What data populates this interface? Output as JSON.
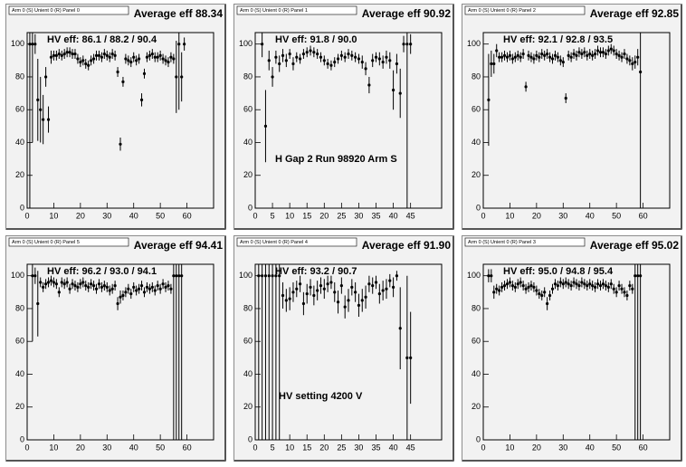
{
  "chart_data": [
    {
      "type": "scatter",
      "title": "Arm 0 (S) Unient 0 (R) Panel 0",
      "subtitle": "Average eff 88.34",
      "annotation": "HV eff:   86.1 / 88.2 / 90.4",
      "x": [
        1,
        2,
        3,
        4,
        5,
        6,
        7,
        8,
        9,
        10,
        11,
        12,
        13,
        14,
        15,
        16,
        17,
        18,
        19,
        20,
        21,
        22,
        23,
        24,
        25,
        26,
        27,
        28,
        29,
        30,
        31,
        32,
        33,
        34,
        35,
        36,
        37,
        38,
        39,
        40,
        41,
        42,
        43,
        44,
        45,
        46,
        47,
        48,
        49,
        50,
        51,
        52,
        53,
        54,
        55,
        56,
        57,
        58,
        59,
        60
      ],
      "values": [
        100,
        100,
        100,
        66,
        60,
        54,
        80,
        54,
        92,
        93,
        93,
        94,
        93,
        94,
        95,
        95,
        94,
        94,
        91,
        89,
        90,
        88,
        87,
        90,
        91,
        93,
        93,
        92,
        94,
        93,
        92,
        94,
        93,
        83,
        39,
        77,
        91,
        90,
        89,
        92,
        90,
        91,
        66,
        82,
        92,
        93,
        94,
        92,
        92,
        93,
        91,
        90,
        89,
        92,
        91,
        80,
        100,
        80,
        100,
        null
      ],
      "errors": [
        100,
        60,
        6,
        25,
        20,
        15,
        6,
        8,
        4,
        3,
        3,
        3,
        3,
        3,
        3,
        3,
        3,
        3,
        3,
        3,
        3,
        3,
        3,
        3,
        3,
        3,
        3,
        3,
        3,
        3,
        3,
        3,
        3,
        3,
        4,
        3,
        3,
        3,
        3,
        3,
        3,
        3,
        4,
        3,
        3,
        3,
        3,
        3,
        3,
        3,
        3,
        3,
        3,
        3,
        3,
        22,
        40,
        15,
        4,
        null
      ],
      "color": "#000000",
      "xlim": [
        0,
        70
      ],
      "ylim": [
        0,
        107
      ],
      "xticks": [
        0,
        10,
        20,
        30,
        40,
        50,
        60
      ],
      "yticks": [
        0,
        20,
        40,
        60,
        80,
        100
      ]
    },
    {
      "type": "scatter",
      "title": "Arm 0 (S) Unient 0 (R) Panel 1",
      "subtitle": "Average eff 90.92",
      "annotation": "HV eff:   91.8 / 90.0",
      "note": "H Gap 2 Run 98920 Arm S",
      "x": [
        1,
        2,
        3,
        4,
        5,
        6,
        7,
        8,
        9,
        10,
        11,
        12,
        13,
        14,
        15,
        16,
        17,
        18,
        19,
        20,
        21,
        22,
        23,
        24,
        25,
        26,
        27,
        28,
        29,
        30,
        31,
        32,
        33,
        34,
        35,
        36,
        37,
        38,
        39,
        40,
        41,
        42,
        43,
        44,
        45
      ],
      "values": [
        null,
        100,
        50,
        90,
        80,
        92,
        88,
        93,
        90,
        94,
        88,
        92,
        91,
        94,
        95,
        96,
        95,
        94,
        92,
        90,
        88,
        87,
        89,
        91,
        93,
        92,
        94,
        93,
        92,
        91,
        89,
        85,
        75,
        90,
        92,
        91,
        89,
        92,
        90,
        72,
        88,
        70,
        100,
        100,
        100
      ],
      "errors": [
        null,
        8,
        22,
        6,
        6,
        4,
        5,
        4,
        4,
        3,
        4,
        3,
        3,
        3,
        3,
        3,
        3,
        3,
        3,
        3,
        3,
        3,
        3,
        3,
        3,
        3,
        3,
        3,
        3,
        3,
        4,
        4,
        5,
        4,
        3,
        4,
        4,
        4,
        5,
        12,
        6,
        15,
        5,
        100,
        6
      ],
      "color": "#000000",
      "xlim": [
        0,
        54
      ],
      "ylim": [
        0,
        107
      ],
      "xticks": [
        0,
        5,
        10,
        15,
        20,
        25,
        30,
        35,
        40,
        45
      ],
      "yticks": [
        0,
        20,
        40,
        60,
        80,
        100
      ]
    },
    {
      "type": "scatter",
      "title": "Arm 0 (S) Unient 0 (R) Panel 2",
      "subtitle": "Average eff 92.85",
      "annotation": "HV eff:   92.1 / 92.8 / 93.5",
      "x": [
        1,
        2,
        3,
        4,
        5,
        6,
        7,
        8,
        9,
        10,
        11,
        12,
        13,
        14,
        15,
        16,
        17,
        18,
        19,
        20,
        21,
        22,
        23,
        24,
        25,
        26,
        27,
        28,
        29,
        30,
        31,
        32,
        33,
        34,
        35,
        36,
        37,
        38,
        39,
        40,
        41,
        42,
        43,
        44,
        45,
        46,
        47,
        48,
        49,
        50,
        51,
        52,
        53,
        54,
        55,
        56,
        57,
        58,
        59,
        60
      ],
      "values": [
        null,
        66,
        88,
        88,
        96,
        92,
        92,
        93,
        92,
        93,
        91,
        92,
        93,
        92,
        94,
        74,
        93,
        92,
        91,
        93,
        92,
        94,
        93,
        94,
        92,
        91,
        93,
        92,
        90,
        89,
        67,
        93,
        92,
        94,
        93,
        95,
        94,
        95,
        93,
        94,
        93,
        94,
        96,
        95,
        95,
        94,
        96,
        97,
        96,
        94,
        93,
        92,
        94,
        91,
        90,
        88,
        89,
        92,
        83,
        null
      ],
      "errors": [
        null,
        28,
        8,
        6,
        4,
        3,
        3,
        3,
        3,
        3,
        3,
        3,
        3,
        3,
        3,
        3,
        3,
        3,
        3,
        3,
        3,
        3,
        3,
        3,
        3,
        3,
        3,
        3,
        3,
        3,
        3,
        3,
        3,
        3,
        3,
        3,
        3,
        3,
        3,
        3,
        3,
        3,
        3,
        3,
        3,
        3,
        3,
        3,
        3,
        3,
        3,
        3,
        3,
        3,
        3,
        4,
        4,
        5,
        83,
        null
      ],
      "color": "#000000",
      "xlim": [
        0,
        70
      ],
      "ylim": [
        0,
        107
      ],
      "xticks": [
        0,
        10,
        20,
        30,
        40,
        50,
        60
      ],
      "yticks": [
        0,
        20,
        40,
        60,
        80,
        100
      ]
    },
    {
      "type": "scatter",
      "title": "Arm 0 (S) Unient 0 (R) Panel 5",
      "subtitle": "Average eff 94.41",
      "annotation": "HV eff:   96.2 / 93.0 / 94.1",
      "x": [
        1,
        2,
        3,
        4,
        5,
        6,
        7,
        8,
        9,
        10,
        11,
        12,
        13,
        14,
        15,
        16,
        17,
        18,
        19,
        20,
        21,
        22,
        23,
        24,
        25,
        26,
        27,
        28,
        29,
        30,
        31,
        32,
        33,
        34,
        35,
        36,
        37,
        38,
        39,
        40,
        41,
        42,
        43,
        44,
        45,
        46,
        47,
        48,
        49,
        50,
        51,
        52,
        53,
        54,
        55,
        56,
        57,
        58,
        59,
        60
      ],
      "values": [
        null,
        100,
        100,
        83,
        96,
        93,
        95,
        96,
        97,
        96,
        95,
        90,
        96,
        95,
        96,
        92,
        95,
        94,
        93,
        95,
        96,
        94,
        93,
        95,
        94,
        92,
        95,
        93,
        94,
        93,
        91,
        92,
        94,
        83,
        87,
        88,
        90,
        92,
        89,
        93,
        91,
        92,
        94,
        90,
        93,
        92,
        93,
        91,
        94,
        92,
        95,
        93,
        94,
        92,
        100,
        100,
        100,
        100,
        null,
        null
      ],
      "errors": [
        null,
        40,
        5,
        20,
        3,
        3,
        3,
        3,
        3,
        3,
        3,
        3,
        3,
        3,
        3,
        3,
        3,
        3,
        3,
        3,
        3,
        3,
        3,
        3,
        3,
        3,
        3,
        3,
        3,
        3,
        3,
        3,
        3,
        4,
        4,
        3,
        3,
        3,
        3,
        3,
        3,
        3,
        3,
        3,
        3,
        3,
        3,
        3,
        3,
        3,
        3,
        3,
        3,
        3,
        100,
        100,
        100,
        100,
        null,
        null
      ],
      "color": "#000000",
      "xlim": [
        0,
        70
      ],
      "ylim": [
        0,
        107
      ],
      "xticks": [
        0,
        10,
        20,
        30,
        40,
        50,
        60
      ],
      "yticks": [
        0,
        20,
        40,
        60,
        80,
        100
      ]
    },
    {
      "type": "scatter",
      "title": "Arm 0 (S) Unient 0 (R) Panel 4",
      "subtitle": "Average eff 91.90",
      "annotation": "HV eff:   93.2 / 90.7",
      "note": "HV setting 4200 V",
      "x": [
        1,
        2,
        3,
        4,
        5,
        6,
        7,
        8,
        9,
        10,
        11,
        12,
        13,
        14,
        15,
        16,
        17,
        18,
        19,
        20,
        21,
        22,
        23,
        24,
        25,
        26,
        27,
        28,
        29,
        30,
        31,
        32,
        33,
        34,
        35,
        36,
        37,
        38,
        39,
        40,
        41,
        42,
        43,
        44,
        45
      ],
      "values": [
        100,
        100,
        100,
        100,
        100,
        100,
        100,
        88,
        85,
        86,
        90,
        92,
        95,
        83,
        89,
        93,
        88,
        91,
        94,
        92,
        95,
        96,
        90,
        84,
        94,
        81,
        85,
        93,
        90,
        82,
        85,
        87,
        95,
        94,
        96,
        89,
        91,
        92,
        97,
        93,
        100,
        68,
        null,
        50,
        50
      ],
      "errors": [
        100,
        100,
        100,
        100,
        100,
        100,
        100,
        8,
        7,
        7,
        6,
        5,
        5,
        7,
        6,
        5,
        6,
        6,
        5,
        6,
        5,
        4,
        6,
        7,
        5,
        7,
        7,
        5,
        6,
        7,
        7,
        7,
        5,
        5,
        4,
        6,
        6,
        6,
        4,
        6,
        3,
        25,
        null,
        50,
        28
      ],
      "color": "#000000",
      "xlim": [
        0,
        54
      ],
      "ylim": [
        0,
        107
      ],
      "xticks": [
        0,
        5,
        10,
        15,
        20,
        25,
        30,
        35,
        40,
        45
      ],
      "yticks": [
        0,
        20,
        40,
        60,
        80,
        100
      ]
    },
    {
      "type": "scatter",
      "title": "Arm 0 (S) Unient 0 (R) Panel 3",
      "subtitle": "Average eff 95.02",
      "annotation": "HV eff:   95.0 / 94.8 / 95.4",
      "x": [
        1,
        2,
        3,
        4,
        5,
        6,
        7,
        8,
        9,
        10,
        11,
        12,
        13,
        14,
        15,
        16,
        17,
        18,
        19,
        20,
        21,
        22,
        23,
        24,
        25,
        26,
        27,
        28,
        29,
        30,
        31,
        32,
        33,
        34,
        35,
        36,
        37,
        38,
        39,
        40,
        41,
        42,
        43,
        44,
        45,
        46,
        47,
        48,
        49,
        50,
        51,
        52,
        53,
        54,
        55,
        56,
        57,
        58,
        59,
        60
      ],
      "values": [
        null,
        100,
        100,
        90,
        92,
        91,
        93,
        94,
        95,
        96,
        94,
        93,
        95,
        96,
        94,
        92,
        93,
        94,
        93,
        91,
        89,
        88,
        90,
        83,
        88,
        92,
        95,
        94,
        96,
        95,
        96,
        95,
        94,
        96,
        95,
        94,
        96,
        95,
        94,
        95,
        94,
        93,
        95,
        94,
        95,
        94,
        93,
        95,
        92,
        90,
        94,
        92,
        90,
        88,
        94,
        92,
        100,
        100,
        100,
        null
      ],
      "errors": [
        null,
        4,
        4,
        4,
        3,
        3,
        3,
        3,
        3,
        3,
        3,
        3,
        3,
        3,
        3,
        3,
        3,
        3,
        3,
        3,
        3,
        3,
        3,
        4,
        3,
        3,
        3,
        3,
        3,
        3,
        3,
        3,
        3,
        3,
        3,
        3,
        3,
        3,
        3,
        3,
        3,
        3,
        3,
        3,
        3,
        3,
        3,
        3,
        3,
        3,
        3,
        3,
        3,
        3,
        3,
        3,
        100,
        100,
        100,
        null
      ],
      "color": "#000000",
      "xlim": [
        0,
        70
      ],
      "ylim": [
        0,
        107
      ],
      "xticks": [
        0,
        10,
        20,
        30,
        40,
        50,
        60
      ],
      "yticks": [
        0,
        20,
        40,
        60,
        80,
        100
      ]
    }
  ]
}
